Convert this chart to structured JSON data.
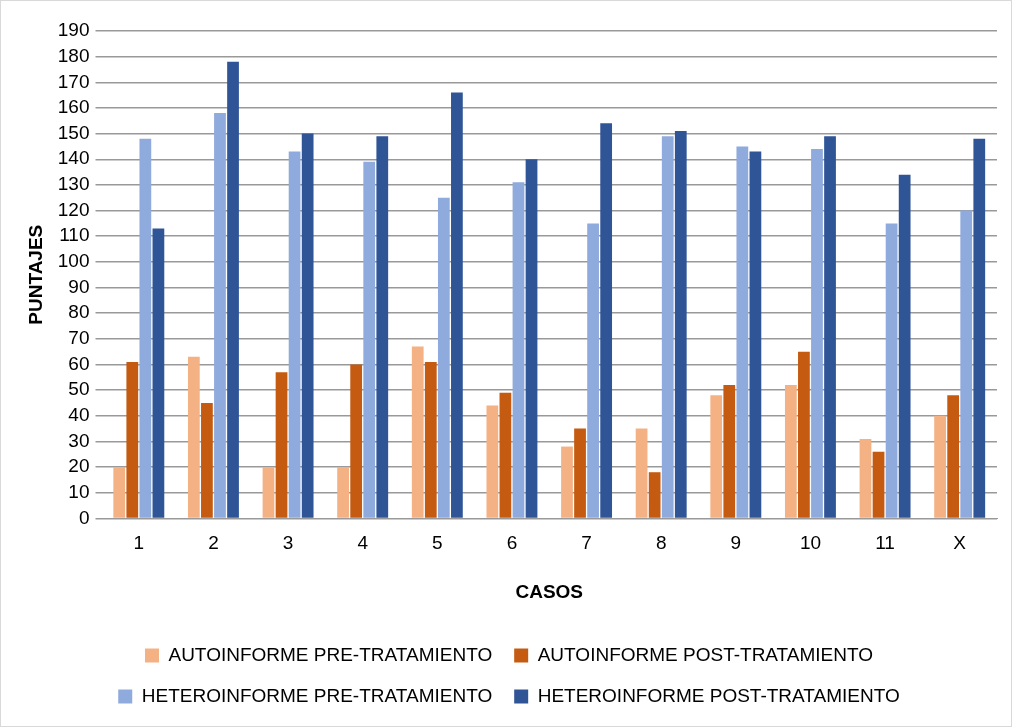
{
  "chart_data": {
    "type": "bar",
    "xlabel": "CASOS",
    "ylabel": "PUNTAJES",
    "categories": [
      "1",
      "2",
      "3",
      "4",
      "5",
      "6",
      "7",
      "8",
      "9",
      "10",
      "11",
      "X"
    ],
    "series": [
      {
        "name": "AUTOINFORME PRE-TRATAMIENTO",
        "color": "#f4b183",
        "values": [
          20,
          63,
          20,
          20,
          67,
          44,
          28,
          35,
          48,
          52,
          31,
          40
        ]
      },
      {
        "name": "AUTOINFORME POST-TRATAMIENTO",
        "color": "#c55a11",
        "values": [
          61,
          45,
          57,
          60,
          61,
          49,
          35,
          18,
          52,
          65,
          26,
          48
        ]
      },
      {
        "name": "HETEROINFORME PRE-TRATAMIENTO",
        "color": "#8faadc",
        "values": [
          148,
          158,
          143,
          139,
          125,
          131,
          115,
          149,
          145,
          144,
          115,
          120
        ]
      },
      {
        "name": "HETEROINFORME POST-TRATAMIENTO",
        "color": "#2f5597",
        "values": [
          113,
          178,
          150,
          149,
          166,
          140,
          154,
          151,
          143,
          149,
          134,
          148
        ]
      }
    ],
    "ylim": [
      0,
      190
    ],
    "yticks": [
      0,
      10,
      20,
      30,
      40,
      50,
      60,
      70,
      80,
      90,
      100,
      110,
      120,
      130,
      140,
      150,
      160,
      170,
      180,
      190
    ],
    "grid": "y",
    "legend": "bottom"
  }
}
